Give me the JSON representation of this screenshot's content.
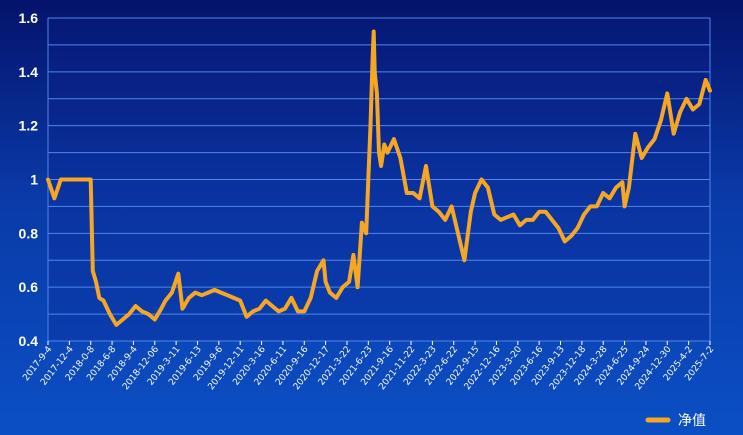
{
  "chart_data": {
    "type": "line",
    "title": "",
    "xlabel": "",
    "ylabel": "",
    "ylim": [
      0.4,
      1.6
    ],
    "yticks": [
      "0.4",
      "0.6",
      "0.8",
      "1",
      "1.2",
      "1.4",
      "1.6"
    ],
    "grid": true,
    "legend": "bottom-right",
    "colors": {
      "line": "#f5a623",
      "grid": "#4f86e8"
    },
    "x_tick_labels": [
      "2017-9-4",
      "2017-12-4",
      "2018-0-8",
      "2018-6-8",
      "2018-9-4",
      "2018-12-06",
      "2019-3-11",
      "2019-6-13",
      "2019-9-6",
      "2019-12-11",
      "2020-3-16",
      "2020-6-11",
      "2020-9-16",
      "2020-12-17",
      "2021-3-22",
      "2021-6-23",
      "2021-9-16",
      "2021-11-22",
      "2022-3-23",
      "2022-6-22",
      "2022-9-15",
      "2022-12-16",
      "2023-3-20",
      "2023-6-16",
      "2023-9-13",
      "2023-12-18",
      "2024-3-28",
      "2024-6-25",
      "2024-9-24",
      "2024-12-30",
      "2025-4-2",
      "2025-7-2"
    ],
    "series": [
      {
        "name": "净值",
        "x": [
          0,
          0.3,
          0.6,
          1,
          1.3,
          1.6,
          2,
          2.1,
          2.25,
          2.4,
          2.6,
          2.9,
          3.2,
          3.5,
          3.8,
          4.1,
          4.4,
          4.7,
          5.0,
          5.3,
          5.5,
          5.8,
          6.1,
          6.3,
          6.6,
          6.9,
          7.2,
          7.5,
          7.8,
          8.1,
          8.4,
          8.7,
          9.0,
          9.3,
          9.6,
          9.9,
          10.2,
          10.5,
          10.8,
          11.1,
          11.4,
          11.7,
          12.0,
          12.3,
          12.6,
          12.9,
          13.0,
          13.2,
          13.5,
          13.8,
          14.1,
          14.3,
          14.5,
          14.7,
          14.9,
          15.0,
          15.1,
          15.2,
          15.25,
          15.3,
          15.4,
          15.5,
          15.6,
          15.75,
          15.9,
          16.2,
          16.5,
          16.8,
          17.1,
          17.4,
          17.7,
          18.0,
          18.3,
          18.6,
          18.9,
          19.2,
          19.5,
          19.8,
          20.0,
          20.3,
          20.6,
          20.9,
          21.2,
          21.5,
          21.8,
          22.1,
          22.4,
          22.7,
          23.0,
          23.3,
          23.6,
          23.9,
          24.2,
          24.5,
          24.8,
          25.1,
          25.4,
          25.7,
          26.0,
          26.3,
          26.6,
          26.9,
          27.0,
          27.2,
          27.5,
          27.8,
          28.1,
          28.4,
          28.7,
          29.0,
          29.3,
          29.6,
          29.9,
          30.2,
          30.5,
          30.8,
          31.0
        ],
        "values": [
          1.0,
          0.93,
          1.0,
          1.0,
          1.0,
          1.0,
          1.0,
          0.66,
          0.62,
          0.56,
          0.55,
          0.5,
          0.46,
          0.48,
          0.5,
          0.53,
          0.51,
          0.5,
          0.48,
          0.52,
          0.55,
          0.58,
          0.65,
          0.52,
          0.56,
          0.58,
          0.57,
          0.58,
          0.59,
          0.58,
          0.57,
          0.56,
          0.55,
          0.49,
          0.51,
          0.52,
          0.55,
          0.53,
          0.51,
          0.52,
          0.56,
          0.51,
          0.51,
          0.56,
          0.66,
          0.7,
          0.62,
          0.58,
          0.56,
          0.6,
          0.62,
          0.72,
          0.6,
          0.84,
          0.8,
          1.0,
          1.2,
          1.45,
          1.55,
          1.4,
          1.32,
          1.1,
          1.05,
          1.13,
          1.1,
          1.15,
          1.08,
          0.95,
          0.95,
          0.93,
          1.05,
          0.9,
          0.88,
          0.85,
          0.9,
          0.8,
          0.7,
          0.88,
          0.95,
          1.0,
          0.97,
          0.87,
          0.85,
          0.86,
          0.87,
          0.83,
          0.85,
          0.85,
          0.88,
          0.88,
          0.85,
          0.82,
          0.77,
          0.79,
          0.82,
          0.87,
          0.9,
          0.9,
          0.95,
          0.93,
          0.97,
          0.99,
          0.9,
          0.97,
          1.17,
          1.08,
          1.12,
          1.15,
          1.22,
          1.32,
          1.17,
          1.25,
          1.3,
          1.26,
          1.28,
          1.37,
          1.33
        ]
      }
    ]
  }
}
